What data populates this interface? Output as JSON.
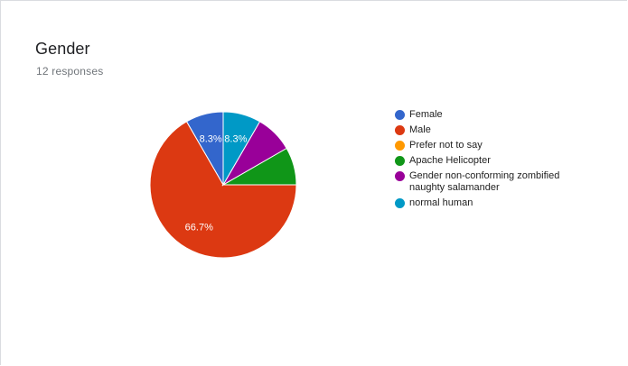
{
  "card": {
    "title": "Gender",
    "subtitle": "12 responses"
  },
  "chart_data": {
    "type": "pie",
    "title": "Gender",
    "subtitle": "12 responses",
    "legend_position": "right",
    "categories": [
      "Female",
      "Male",
      "Prefer not to say",
      "Apache Helicopter",
      "Gender non-conforming zombified naughty salamander",
      "normal human"
    ],
    "counts": [
      1,
      8,
      0,
      1,
      1,
      1
    ],
    "percentages": [
      8.3,
      66.7,
      0,
      8.3,
      8.3,
      8.3
    ],
    "colors": [
      "#3366cc",
      "#dc3912",
      "#ff9900",
      "#109618",
      "#990099",
      "#0099c6"
    ],
    "slice_labels": [
      "8.3%",
      "66.7%",
      "",
      "",
      "",
      "8.3%"
    ]
  }
}
